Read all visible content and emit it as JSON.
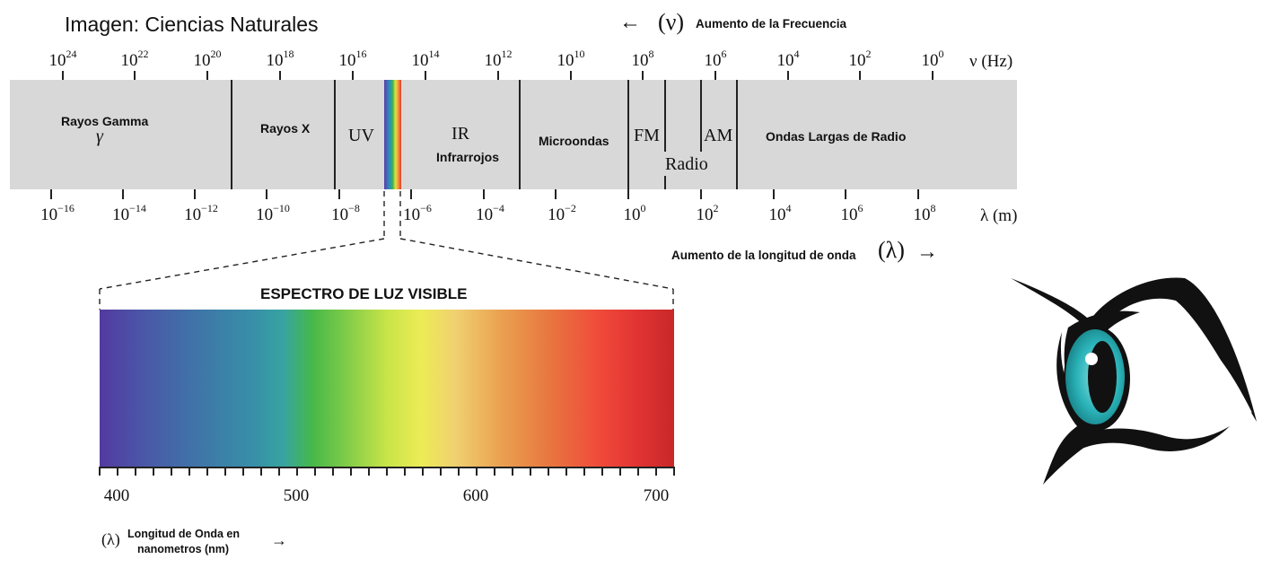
{
  "caption": "Imagen: Ciencias Naturales",
  "frequency": {
    "arrow_left": "←",
    "symbol": "(ν)",
    "label": "Aumento de la Frecuencia",
    "unit": "ν (Hz)",
    "ticks": [
      {
        "base": "10",
        "exp": "24"
      },
      {
        "base": "10",
        "exp": "22"
      },
      {
        "base": "10",
        "exp": "20"
      },
      {
        "base": "10",
        "exp": "18"
      },
      {
        "base": "10",
        "exp": "16"
      },
      {
        "base": "10",
        "exp": "14"
      },
      {
        "base": "10",
        "exp": "12"
      },
      {
        "base": "10",
        "exp": "10"
      },
      {
        "base": "10",
        "exp": "8"
      },
      {
        "base": "10",
        "exp": "6"
      },
      {
        "base": "10",
        "exp": "4"
      },
      {
        "base": "10",
        "exp": "2"
      },
      {
        "base": "10",
        "exp": "0"
      }
    ]
  },
  "wavelength": {
    "unit": "λ (m)",
    "label": "Aumento de la longitud de onda",
    "symbol": "(λ)",
    "arrow_right": "→",
    "ticks": [
      {
        "base": "10",
        "exp": "−16"
      },
      {
        "base": "10",
        "exp": "−14"
      },
      {
        "base": "10",
        "exp": "−12"
      },
      {
        "base": "10",
        "exp": "−10"
      },
      {
        "base": "10",
        "exp": "−8"
      },
      {
        "base": "10",
        "exp": "−6"
      },
      {
        "base": "10",
        "exp": "−4"
      },
      {
        "base": "10",
        "exp": "−2"
      },
      {
        "base": "10",
        "exp": "0"
      },
      {
        "base": "10",
        "exp": "2"
      },
      {
        "base": "10",
        "exp": "4"
      },
      {
        "base": "10",
        "exp": "6"
      },
      {
        "base": "10",
        "exp": "8"
      }
    ]
  },
  "regions": {
    "gamma": "Rayos Gamma",
    "gamma_symbol": "γ",
    "xray": "Rayos X",
    "uv": "UV",
    "ir": "IR",
    "ir_sub": "Infrarrojos",
    "micro": "Microondas",
    "fm": "FM",
    "radio": "Radio",
    "am": "AM",
    "long": "Ondas Largas de Radio"
  },
  "visible": {
    "title": "ESPECTRO DE LUZ VISIBLE",
    "ticks": [
      "400",
      "500",
      "600",
      "700"
    ],
    "symbol": "(λ)",
    "axis_label_line1": "Longitud de Onda en",
    "axis_label_line2": "nanometros (nm)",
    "arrow_right": "→"
  },
  "colors": {
    "band": "#d8d8d8",
    "eye_iris": "#2ab3b8",
    "eye_outline": "#111111"
  }
}
